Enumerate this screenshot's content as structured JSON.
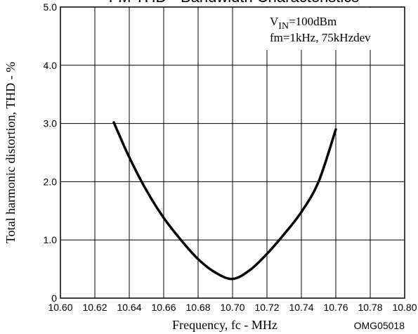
{
  "chart_data": {
    "type": "line",
    "title": "FM THD - Bandwidth Characteristics",
    "xlabel": "Frequency, fc  -  MHz",
    "ylabel": "Total harmonic distortion, THD  -  %",
    "xlim": [
      10.6,
      10.8
    ],
    "ylim": [
      0,
      5.0
    ],
    "x_ticks": [
      "10.60",
      "10.62",
      "10.64",
      "10.66",
      "10.68",
      "10.70",
      "10.72",
      "10.74",
      "10.76",
      "10.78",
      "10.80"
    ],
    "y_ticks": [
      "0",
      "1.0",
      "2.0",
      "3.0",
      "4.0",
      "5.0"
    ],
    "grid": true,
    "annotations": {
      "vin_prefix": "V",
      "vin_sub": "IN",
      "vin_value": "=100dBm",
      "modulation": "fm=1kHz, 75kHzdev"
    },
    "figure_code": "OMG05018",
    "series": [
      {
        "x": [
          10.631,
          10.64,
          10.65,
          10.66,
          10.67,
          10.68,
          10.69,
          10.7,
          10.71,
          10.72,
          10.73,
          10.74,
          10.75,
          10.76
        ],
        "y": [
          3.02,
          2.42,
          1.85,
          1.38,
          1.0,
          0.67,
          0.44,
          0.33,
          0.48,
          0.76,
          1.1,
          1.48,
          2.0,
          2.9
        ]
      }
    ]
  }
}
